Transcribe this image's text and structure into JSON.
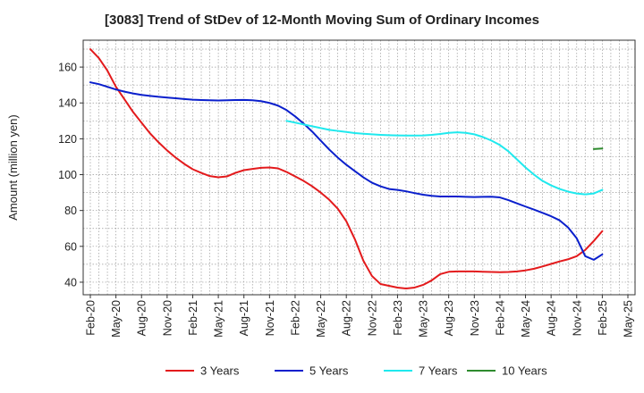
{
  "title": "[3083]  Trend of StDev of 12-Month Moving Sum of Ordinary Incomes",
  "chart_data": {
    "type": "line",
    "title": "[3083]  Trend of StDev of 12-Month Moving Sum of Ordinary Incomes",
    "xlabel": "",
    "ylabel": "Amount (million yen)",
    "ylim": [
      33,
      175
    ],
    "yticks": [
      40,
      60,
      80,
      100,
      120,
      140,
      160
    ],
    "xticks": [
      "Feb-20",
      "May-20",
      "Aug-20",
      "Nov-20",
      "Feb-21",
      "May-21",
      "Aug-21",
      "Nov-21",
      "Feb-22",
      "May-22",
      "Aug-22",
      "Nov-22",
      "Feb-23",
      "May-23",
      "Aug-23",
      "Nov-23",
      "Feb-24",
      "May-24",
      "Aug-24",
      "Nov-24",
      "Feb-25",
      "May-25"
    ],
    "grid": true,
    "legend_position": "bottom",
    "series": [
      {
        "name": "3 Years",
        "color": "#e31a1c",
        "x": [
          "2020-02",
          "2020-03",
          "2020-04",
          "2020-05",
          "2020-06",
          "2020-07",
          "2020-08",
          "2020-09",
          "2020-10",
          "2020-11",
          "2020-12",
          "2021-01",
          "2021-02",
          "2021-03",
          "2021-04",
          "2021-05",
          "2021-06",
          "2021-07",
          "2021-08",
          "2021-09",
          "2021-10",
          "2021-11",
          "2021-12",
          "2022-01",
          "2022-02",
          "2022-03",
          "2022-04",
          "2022-05",
          "2022-06",
          "2022-07",
          "2022-08",
          "2022-09",
          "2022-10",
          "2022-11",
          "2022-12",
          "2023-01",
          "2023-02",
          "2023-03",
          "2023-04",
          "2023-05",
          "2023-06",
          "2023-07",
          "2023-08",
          "2023-09",
          "2023-10",
          "2023-11",
          "2023-12",
          "2024-01",
          "2024-02",
          "2024-03",
          "2024-04",
          "2024-05",
          "2024-06",
          "2024-07",
          "2024-08",
          "2024-09",
          "2024-10",
          "2024-11",
          "2024-12",
          "2025-01",
          "2025-02"
        ],
        "values": [
          170,
          165,
          158,
          149,
          142,
          135,
          129,
          123,
          118,
          113.5,
          109.5,
          106,
          103,
          101,
          99.2,
          98.5,
          99,
          101,
          102.5,
          103.2,
          103.8,
          104,
          103.5,
          101.5,
          99,
          96.5,
          93.5,
          90,
          86,
          81,
          74,
          64,
          52,
          43.5,
          39,
          38,
          37,
          36.5,
          37,
          38.5,
          41,
          44.5,
          45.8,
          46,
          46,
          46,
          45.8,
          45.7,
          45.6,
          45.7,
          46,
          46.6,
          47.5,
          48.8,
          50.2,
          51.6,
          52.8,
          54.5,
          58,
          63,
          68.5
        ]
      },
      {
        "name": "5 Years",
        "color": "#0a1fcc",
        "x": [
          "2020-02",
          "2020-03",
          "2020-04",
          "2020-05",
          "2020-06",
          "2020-07",
          "2020-08",
          "2020-09",
          "2020-10",
          "2020-11",
          "2020-12",
          "2021-01",
          "2021-02",
          "2021-03",
          "2021-04",
          "2021-05",
          "2021-06",
          "2021-07",
          "2021-08",
          "2021-09",
          "2021-10",
          "2021-11",
          "2021-12",
          "2022-01",
          "2022-02",
          "2022-03",
          "2022-04",
          "2022-05",
          "2022-06",
          "2022-07",
          "2022-08",
          "2022-09",
          "2022-10",
          "2022-11",
          "2022-12",
          "2023-01",
          "2023-02",
          "2023-03",
          "2023-04",
          "2023-05",
          "2023-06",
          "2023-07",
          "2023-08",
          "2023-09",
          "2023-10",
          "2023-11",
          "2023-12",
          "2024-01",
          "2024-02",
          "2024-03",
          "2024-04",
          "2024-05",
          "2024-06",
          "2024-07",
          "2024-08",
          "2024-09",
          "2024-10",
          "2024-11",
          "2024-12",
          "2025-01",
          "2025-02"
        ],
        "values": [
          151.5,
          150.5,
          149,
          147.5,
          146.3,
          145.3,
          144.5,
          143.9,
          143.4,
          143,
          142.6,
          142.2,
          141.8,
          141.6,
          141.5,
          141.4,
          141.5,
          141.6,
          141.7,
          141.5,
          141,
          140,
          138.5,
          136,
          132.5,
          128.5,
          124,
          119,
          114,
          109.5,
          105.5,
          102,
          98.5,
          95.5,
          93.5,
          92,
          91.5,
          90.7,
          89.7,
          88.8,
          88.2,
          87.8,
          87.8,
          87.8,
          87.6,
          87.5,
          87.6,
          87.7,
          87.3,
          85.8,
          84,
          82.2,
          80.5,
          78.7,
          76.8,
          74.5,
          70.5,
          64.5,
          54.5,
          52.5,
          55.5
        ]
      },
      {
        "name": "7 Years",
        "color": "#1fe9ee",
        "x": [
          "2022-01",
          "2022-02",
          "2022-03",
          "2022-04",
          "2022-05",
          "2022-06",
          "2022-07",
          "2022-08",
          "2022-09",
          "2022-10",
          "2022-11",
          "2022-12",
          "2023-01",
          "2023-02",
          "2023-03",
          "2023-04",
          "2023-05",
          "2023-06",
          "2023-07",
          "2023-08",
          "2023-09",
          "2023-10",
          "2023-11",
          "2023-12",
          "2024-01",
          "2024-02",
          "2024-03",
          "2024-04",
          "2024-05",
          "2024-06",
          "2024-07",
          "2024-08",
          "2024-09",
          "2024-10",
          "2024-11",
          "2024-12",
          "2025-01",
          "2025-02"
        ],
        "values": [
          130,
          129,
          128,
          127,
          126,
          125,
          124.4,
          123.8,
          123.2,
          122.8,
          122.5,
          122.2,
          122,
          121.9,
          121.8,
          121.8,
          121.9,
          122.2,
          122.7,
          123.3,
          123.6,
          123.3,
          122.5,
          121,
          119,
          116.5,
          113,
          108.5,
          104,
          100,
          96.5,
          94,
          92,
          90.5,
          89.5,
          89,
          89.5,
          91.5
        ]
      },
      {
        "name": "10 Years",
        "color": "#2e8b2e",
        "x": [
          "2025-01",
          "2025-02"
        ],
        "values": [
          114.3,
          114.6
        ]
      }
    ]
  }
}
